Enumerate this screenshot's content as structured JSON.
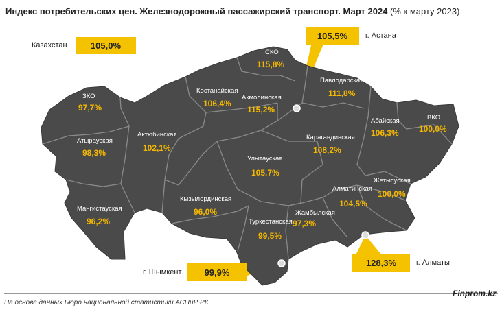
{
  "title": {
    "main": "Индекс потребительских цен. Железнодорожный пассажирский транспорт. Март 2024",
    "suffix": "(% к марту 2023)"
  },
  "kazakhstan": {
    "label": "Казахстан",
    "value": "105,0%"
  },
  "cities": {
    "astana": {
      "label": "г. Астана",
      "value": "105,5%"
    },
    "almaty": {
      "label": "г. Алматы",
      "value": "128,3%"
    },
    "shymkent": {
      "label": "г. Шымкент",
      "value": "99,9%"
    }
  },
  "regions": {
    "zko": {
      "name": "ЗКО",
      "value": "97,7%"
    },
    "atyrau": {
      "name": "Атырауская",
      "value": "98,3%"
    },
    "aktobe": {
      "name": "Актюбинская",
      "value": "102,1%"
    },
    "kostanay": {
      "name": "Костанайская",
      "value": "106,4%"
    },
    "sko": {
      "name": "СКО",
      "value": "115,8%"
    },
    "akmola": {
      "name": "Акмолинская",
      "value": "115,2%"
    },
    "pavlodar": {
      "name": "Павлодарская",
      "value": "111,8%"
    },
    "abay": {
      "name": "Абайская",
      "value": "106,3%"
    },
    "vko": {
      "name": "ВКО",
      "value": "100,0%"
    },
    "karaganda": {
      "name": "Карагандинская",
      "value": "108,2%"
    },
    "ulytau": {
      "name": "Улытауская",
      "value": "105,7%"
    },
    "mangystau": {
      "name": "Мангистауская",
      "value": "96,2%"
    },
    "kyzylorda": {
      "name": "Кызылординская",
      "value": "96,0%"
    },
    "turkestan": {
      "name": "Туркестанская",
      "value": "99,5%"
    },
    "zhambyl": {
      "name": "Жамбылская",
      "value": "97,3%"
    },
    "almaty_obl": {
      "name": "Алматинская",
      "value": "104,5%"
    },
    "zhetysu": {
      "name": "Жетысуская",
      "value": "100,0%"
    }
  },
  "colors": {
    "map_fill": "#4A4A4A",
    "border": "#8A8A8A",
    "accent": "#F5C200",
    "value_text": "#F5B800"
  },
  "footer": {
    "source": "На основе данных Бюро национальной статистики АСПиР РК",
    "brand": "Finprom.kz"
  }
}
